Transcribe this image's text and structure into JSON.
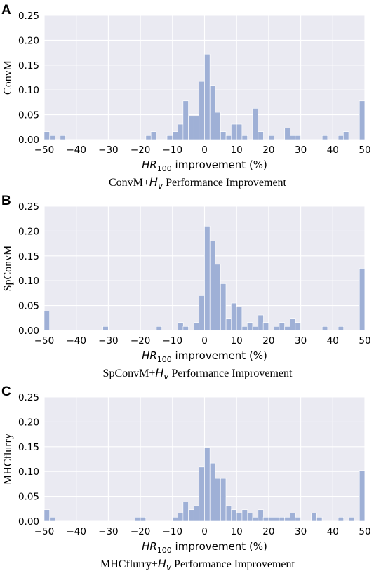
{
  "chart_data": [
    {
      "type": "bar",
      "panel": "A",
      "ylabel": "ConvM",
      "xlabel_main": "HR",
      "xlabel_sub": "100",
      "xlabel_rest": " improvement (%)",
      "caption_pre": "ConvM+",
      "caption_it": "H",
      "caption_sub": "v",
      "caption_post": " Performance Improvement",
      "xlim": [
        -50,
        50
      ],
      "ylim": [
        0,
        0.25
      ],
      "xticks": [
        "−50",
        "−40",
        "−30",
        "−20",
        "−10",
        "0",
        "10",
        "20",
        "30",
        "40",
        "50"
      ],
      "yticks": [
        "0.00",
        "0.05",
        "0.10",
        "0.15",
        "0.20",
        "0.25"
      ],
      "grid": true,
      "bin_width": 1.67,
      "bins": [
        {
          "x": -50.0,
          "y": 0.016
        },
        {
          "x": -48.3,
          "y": 0.008
        },
        {
          "x": -45.0,
          "y": 0.008
        },
        {
          "x": -18.3,
          "y": 0.008
        },
        {
          "x": -16.7,
          "y": 0.016
        },
        {
          "x": -11.7,
          "y": 0.008
        },
        {
          "x": -10.0,
          "y": 0.016
        },
        {
          "x": -8.3,
          "y": 0.031
        },
        {
          "x": -6.7,
          "y": 0.078
        },
        {
          "x": -5.0,
          "y": 0.047
        },
        {
          "x": -3.3,
          "y": 0.047
        },
        {
          "x": -1.7,
          "y": 0.117
        },
        {
          "x": 0.0,
          "y": 0.172
        },
        {
          "x": 1.7,
          "y": 0.109
        },
        {
          "x": 3.3,
          "y": 0.055
        },
        {
          "x": 5.0,
          "y": 0.016
        },
        {
          "x": 6.7,
          "y": 0.008
        },
        {
          "x": 8.3,
          "y": 0.031
        },
        {
          "x": 10.0,
          "y": 0.031
        },
        {
          "x": 11.7,
          "y": 0.008
        },
        {
          "x": 15.0,
          "y": 0.063
        },
        {
          "x": 16.7,
          "y": 0.016
        },
        {
          "x": 20.0,
          "y": 0.008
        },
        {
          "x": 25.0,
          "y": 0.023
        },
        {
          "x": 26.7,
          "y": 0.008
        },
        {
          "x": 28.3,
          "y": 0.008
        },
        {
          "x": 36.7,
          "y": 0.008
        },
        {
          "x": 41.7,
          "y": 0.008
        },
        {
          "x": 43.3,
          "y": 0.016
        },
        {
          "x": 48.3,
          "y": 0.078
        }
      ]
    },
    {
      "type": "bar",
      "panel": "B",
      "ylabel": "SpConvM",
      "xlabel_main": "HR",
      "xlabel_sub": "100",
      "xlabel_rest": " improvement (%)",
      "caption_pre": "SpConvM+",
      "caption_it": "H",
      "caption_sub": "v",
      "caption_post": " Performance Improvement",
      "xlim": [
        -50,
        50
      ],
      "ylim": [
        0,
        0.25
      ],
      "xticks": [
        "−50",
        "−40",
        "−30",
        "−20",
        "−10",
        "0",
        "10",
        "20",
        "30",
        "40",
        "50"
      ],
      "yticks": [
        "0.00",
        "0.05",
        "0.10",
        "0.15",
        "0.20",
        "0.25"
      ],
      "grid": true,
      "bin_width": 1.67,
      "bins": [
        {
          "x": -50.0,
          "y": 0.039
        },
        {
          "x": -31.7,
          "y": 0.008
        },
        {
          "x": -15.0,
          "y": 0.008
        },
        {
          "x": -8.3,
          "y": 0.016
        },
        {
          "x": -6.7,
          "y": 0.008
        },
        {
          "x": -3.3,
          "y": 0.016
        },
        {
          "x": -1.7,
          "y": 0.07
        },
        {
          "x": 0.0,
          "y": 0.21
        },
        {
          "x": 1.7,
          "y": 0.18
        },
        {
          "x": 3.3,
          "y": 0.133
        },
        {
          "x": 5.0,
          "y": 0.094
        },
        {
          "x": 6.7,
          "y": 0.023
        },
        {
          "x": 8.3,
          "y": 0.055
        },
        {
          "x": 10.0,
          "y": 0.047
        },
        {
          "x": 11.7,
          "y": 0.008
        },
        {
          "x": 13.3,
          "y": 0.016
        },
        {
          "x": 15.0,
          "y": 0.008
        },
        {
          "x": 16.7,
          "y": 0.031
        },
        {
          "x": 18.3,
          "y": 0.016
        },
        {
          "x": 21.7,
          "y": 0.008
        },
        {
          "x": 23.3,
          "y": 0.016
        },
        {
          "x": 25.0,
          "y": 0.008
        },
        {
          "x": 26.7,
          "y": 0.023
        },
        {
          "x": 28.3,
          "y": 0.016
        },
        {
          "x": 36.7,
          "y": 0.008
        },
        {
          "x": 41.7,
          "y": 0.008
        },
        {
          "x": 48.3,
          "y": 0.125
        }
      ]
    },
    {
      "type": "bar",
      "panel": "C",
      "ylabel": "MHCflurry",
      "xlabel_main": "HR",
      "xlabel_sub": "100",
      "xlabel_rest": " improvement (%)",
      "caption_pre": "MHCflurry+",
      "caption_it": "H",
      "caption_sub": "v",
      "caption_post": " Performance Improvement",
      "xlim": [
        -50,
        50
      ],
      "ylim": [
        0,
        0.25
      ],
      "xticks": [
        "−50",
        "−40",
        "−30",
        "−20",
        "−10",
        "0",
        "10",
        "20",
        "30",
        "40",
        "50"
      ],
      "yticks": [
        "0.00",
        "0.05",
        "0.10",
        "0.15",
        "0.20",
        "0.25"
      ],
      "grid": true,
      "bin_width": 1.67,
      "bins": [
        {
          "x": -50.0,
          "y": 0.023
        },
        {
          "x": -48.3,
          "y": 0.008
        },
        {
          "x": -21.7,
          "y": 0.008
        },
        {
          "x": -20.0,
          "y": 0.008
        },
        {
          "x": -10.0,
          "y": 0.008
        },
        {
          "x": -8.3,
          "y": 0.016
        },
        {
          "x": -6.7,
          "y": 0.039
        },
        {
          "x": -5.0,
          "y": 0.023
        },
        {
          "x": -3.3,
          "y": 0.031
        },
        {
          "x": -1.7,
          "y": 0.109
        },
        {
          "x": 0.0,
          "y": 0.148
        },
        {
          "x": 1.7,
          "y": 0.117
        },
        {
          "x": 3.3,
          "y": 0.086
        },
        {
          "x": 5.0,
          "y": 0.086
        },
        {
          "x": 6.7,
          "y": 0.031
        },
        {
          "x": 8.3,
          "y": 0.023
        },
        {
          "x": 10.0,
          "y": 0.016
        },
        {
          "x": 11.7,
          "y": 0.023
        },
        {
          "x": 13.3,
          "y": 0.016
        },
        {
          "x": 15.0,
          "y": 0.008
        },
        {
          "x": 16.7,
          "y": 0.023
        },
        {
          "x": 18.3,
          "y": 0.008
        },
        {
          "x": 20.0,
          "y": 0.008
        },
        {
          "x": 21.7,
          "y": 0.008
        },
        {
          "x": 23.3,
          "y": 0.008
        },
        {
          "x": 25.0,
          "y": 0.008
        },
        {
          "x": 26.7,
          "y": 0.016
        },
        {
          "x": 28.3,
          "y": 0.008
        },
        {
          "x": 33.3,
          "y": 0.016
        },
        {
          "x": 35.0,
          "y": 0.008
        },
        {
          "x": 41.7,
          "y": 0.008
        },
        {
          "x": 45.0,
          "y": 0.008
        },
        {
          "x": 48.3,
          "y": 0.102
        }
      ]
    }
  ]
}
